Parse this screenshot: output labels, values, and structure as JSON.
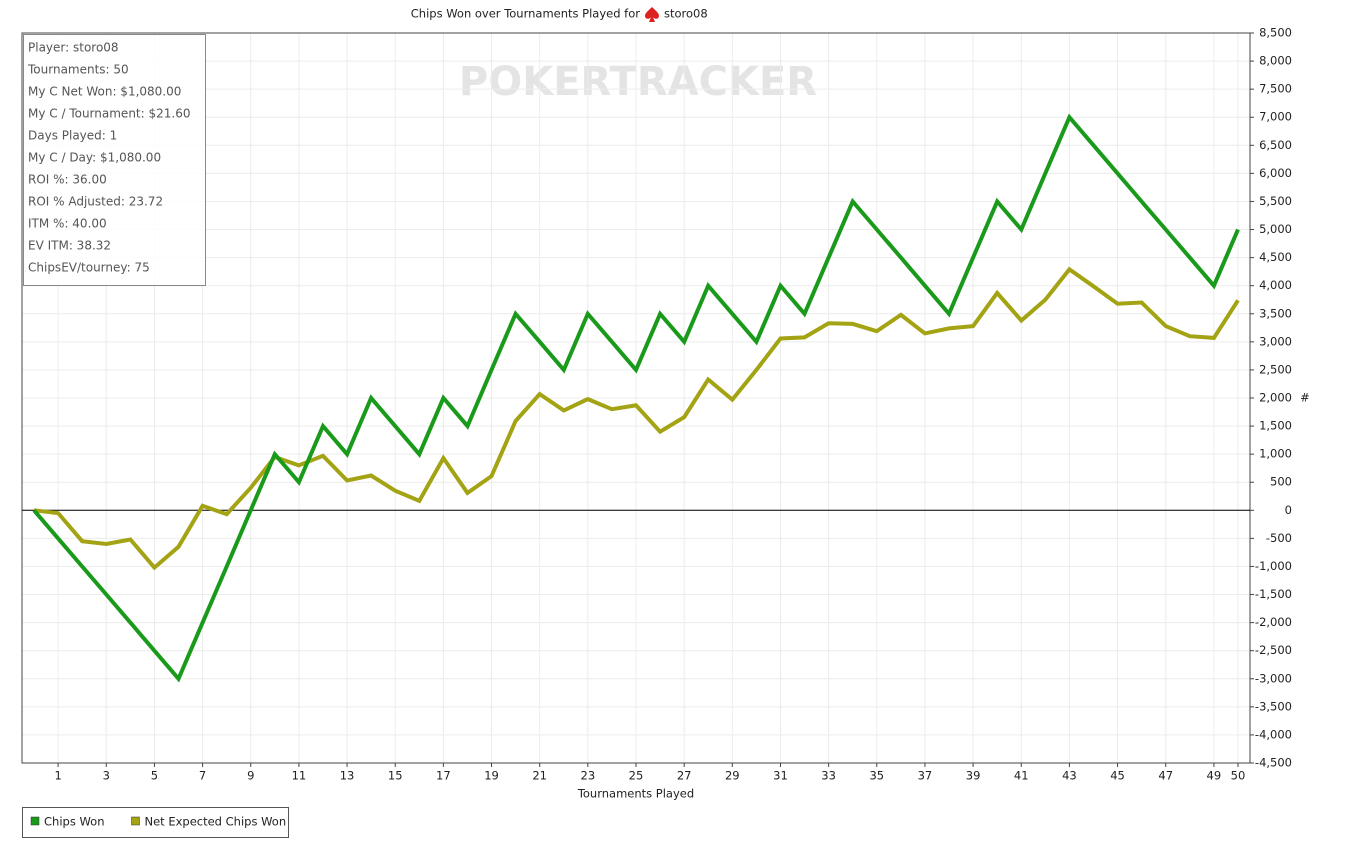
{
  "chart_data": {
    "type": "line",
    "title": "Chips Won over Tournaments Played for",
    "player": "storo08",
    "watermark": "POKERTRACKER",
    "x_label": "Tournaments Played",
    "y_label": "#",
    "stats": [
      "Player: storo08",
      "Tournaments: 50",
      "My C Net Won: $1,080.00",
      "My C / Tournament: $21.60",
      "Days Played: 1",
      "My C / Day: $1,080.00",
      "ROI %: 36.00",
      "ROI % Adjusted: 23.72",
      "ITM %: 40.00",
      "EV ITM: 38.32",
      "ChipsEV/tourney: 75"
    ],
    "x": [
      0,
      1,
      2,
      3,
      4,
      5,
      6,
      7,
      8,
      9,
      10,
      11,
      12,
      13,
      14,
      15,
      16,
      17,
      18,
      19,
      20,
      21,
      22,
      23,
      24,
      25,
      26,
      27,
      28,
      29,
      30,
      31,
      32,
      33,
      34,
      35,
      36,
      37,
      38,
      39,
      40,
      41,
      42,
      43,
      44,
      45,
      46,
      47,
      48,
      49,
      50
    ],
    "series": [
      {
        "name": "Chips Won",
        "color": "#1a9a1a",
        "values": [
          0,
          -500,
          -1000,
          -1500,
          -2000,
          -2500,
          -3000,
          -2000,
          -1000,
          0,
          1000,
          500,
          1500,
          1000,
          2000,
          1500,
          1000,
          2000,
          1500,
          2500,
          3500,
          3000,
          2500,
          3500,
          3000,
          2500,
          3500,
          3000,
          4000,
          3500,
          3000,
          4000,
          3500,
          4500,
          5500,
          5000,
          4500,
          4000,
          3500,
          4500,
          5500,
          5000,
          6000,
          7000,
          6500,
          6000,
          5500,
          5000,
          4500,
          4000,
          5000
        ]
      },
      {
        "name": "Net Expected Chips Won",
        "color": "#a3a314",
        "values": [
          0,
          -50,
          -550,
          -600,
          -520,
          -1020,
          -650,
          80,
          -70,
          400,
          950,
          800,
          970,
          530,
          620,
          350,
          170,
          930,
          310,
          610,
          1590,
          2070,
          1780,
          1980,
          1800,
          1870,
          1400,
          1660,
          2330,
          1970,
          2500,
          3060,
          3080,
          3330,
          3320,
          3190,
          3480,
          3150,
          3240,
          3280,
          3870,
          3380,
          3750,
          4290,
          3990,
          3680,
          3700,
          3280,
          3100,
          3070,
          3740
        ]
      }
    ],
    "xlim": [
      -0.5,
      50.5
    ],
    "xticks": [
      1,
      3,
      5,
      7,
      9,
      11,
      13,
      15,
      17,
      19,
      21,
      23,
      25,
      27,
      29,
      31,
      33,
      35,
      37,
      39,
      41,
      43,
      45,
      47,
      49,
      50
    ],
    "ylim": [
      -4500,
      8500
    ],
    "yticks": [
      {
        "value": 8500,
        "label": "8,500"
      },
      {
        "value": 8000,
        "label": "8,000"
      },
      {
        "value": 7500,
        "label": "7,500"
      },
      {
        "value": 7000,
        "label": "7,000"
      },
      {
        "value": 6500,
        "label": "6,500"
      },
      {
        "value": 6000,
        "label": "6,000"
      },
      {
        "value": 5500,
        "label": "5,500"
      },
      {
        "value": 5000,
        "label": "5,000"
      },
      {
        "value": 4500,
        "label": "4,500"
      },
      {
        "value": 4000,
        "label": "4,000"
      },
      {
        "value": 3500,
        "label": "3,500"
      },
      {
        "value": 3000,
        "label": "3,000"
      },
      {
        "value": 2500,
        "label": "2,500"
      },
      {
        "value": 2000,
        "label": "2,000"
      },
      {
        "value": 1500,
        "label": "1,500"
      },
      {
        "value": 1000,
        "label": "1,000"
      },
      500,
      0,
      -500,
      {
        "value": -1000,
        "label": "-1,000"
      },
      {
        "value": -1500,
        "label": "-1,500"
      },
      {
        "value": -2000,
        "label": "-2,000"
      },
      {
        "value": -2500,
        "label": "-2,500"
      },
      {
        "value": -3000,
        "label": "-3,000"
      },
      {
        "value": -3500,
        "label": "-3,500"
      },
      {
        "value": -4000,
        "label": "-4,000"
      },
      {
        "value": -4500,
        "label": "-4,500"
      }
    ],
    "grid": true
  }
}
